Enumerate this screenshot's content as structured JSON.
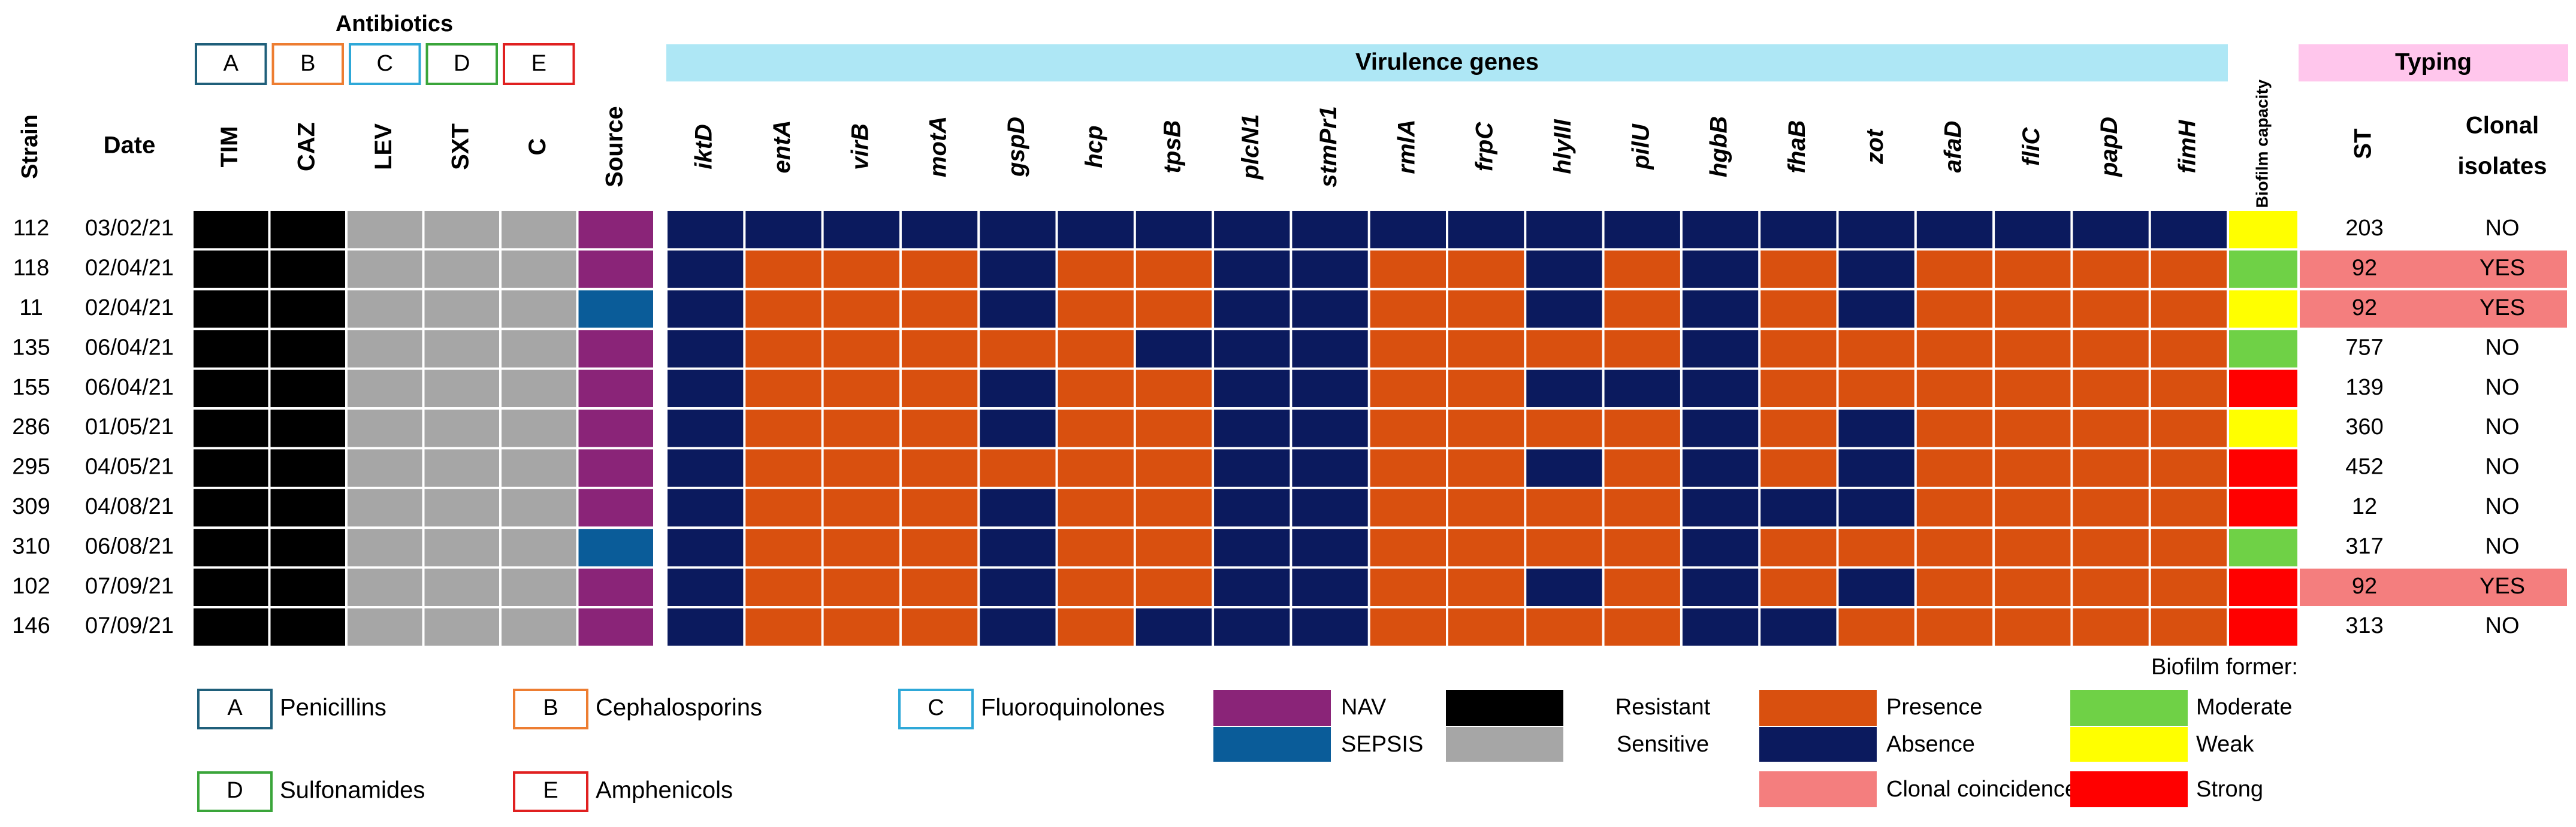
{
  "header": {
    "antibiotics_title": "Antibiotics",
    "class_letters": [
      "A",
      "B",
      "C",
      "D",
      "E"
    ],
    "virulence_title": "Virulence genes",
    "typing_title": "Typing"
  },
  "columns": {
    "strain": "Strain",
    "date": "Date",
    "antibiotics": [
      "TIM",
      "CAZ",
      "LEV",
      "SXT",
      "C"
    ],
    "source": "Source",
    "genes": [
      "iktD",
      "entA",
      "virB",
      "motA",
      "gspD",
      "hcp",
      "tpsB",
      "plcN1",
      "stmPr1",
      "rmlA",
      "frpC",
      "hlyIII",
      "pilU",
      "hgbB",
      "fhaB",
      "zot",
      "afaD",
      "fliC",
      "papD",
      "fimH"
    ],
    "biofilm": "Biofilm capacity",
    "st": "ST",
    "clonal_line1": "Clonal",
    "clonal_line2": "isolates"
  },
  "rows": [
    {
      "strain": "112",
      "date": "03/02/21",
      "abx": [
        "R",
        "R",
        "S",
        "S",
        "S"
      ],
      "source": "NAV",
      "genes": "AAAAAAAAAAAAAAAAAAAA",
      "biofilm": "Weak",
      "st": "203",
      "clonal": "NO"
    },
    {
      "strain": "118",
      "date": "02/04/21",
      "abx": [
        "R",
        "R",
        "S",
        "S",
        "S"
      ],
      "source": "NAV",
      "genes": "APPPAPPAAPPAPAPAPPPP",
      "biofilm": "Moderate",
      "st": "92",
      "clonal": "YES"
    },
    {
      "strain": "11",
      "date": "02/04/21",
      "abx": [
        "R",
        "R",
        "S",
        "S",
        "S"
      ],
      "source": "SEPSIS",
      "genes": "APPPAPPAAPPAPAPAPPPP",
      "biofilm": "Weak",
      "st": "92",
      "clonal": "YES"
    },
    {
      "strain": "135",
      "date": "06/04/21",
      "abx": [
        "R",
        "R",
        "S",
        "S",
        "S"
      ],
      "source": "NAV",
      "genes": "APPPPPAAAPPPPAPPPPPP",
      "biofilm": "Moderate",
      "st": "757",
      "clonal": "NO"
    },
    {
      "strain": "155",
      "date": "06/04/21",
      "abx": [
        "R",
        "R",
        "S",
        "S",
        "S"
      ],
      "source": "NAV",
      "genes": "APPPAPPAAPPAAAPPPPPP",
      "biofilm": "Strong",
      "st": "139",
      "clonal": "NO"
    },
    {
      "strain": "286",
      "date": "01/05/21",
      "abx": [
        "R",
        "R",
        "S",
        "S",
        "S"
      ],
      "source": "NAV",
      "genes": "APPPAPPAAPPPPAPAPPPP",
      "biofilm": "Weak",
      "st": "360",
      "clonal": "NO"
    },
    {
      "strain": "295",
      "date": "04/05/21",
      "abx": [
        "R",
        "R",
        "S",
        "S",
        "S"
      ],
      "source": "NAV",
      "genes": "APPPPPPAAPPAPAPAPPPP",
      "biofilm": "Strong",
      "st": "452",
      "clonal": "NO"
    },
    {
      "strain": "309",
      "date": "04/08/21",
      "abx": [
        "R",
        "R",
        "S",
        "S",
        "S"
      ],
      "source": "NAV",
      "genes": "APPPAPPAAPPPPAAAPPPP",
      "biofilm": "Strong",
      "st": "12",
      "clonal": "NO"
    },
    {
      "strain": "310",
      "date": "06/08/21",
      "abx": [
        "R",
        "R",
        "S",
        "S",
        "S"
      ],
      "source": "SEPSIS",
      "genes": "APPPAPPAAPPPPAPPPPPP",
      "biofilm": "Moderate",
      "st": "317",
      "clonal": "NO"
    },
    {
      "strain": "102",
      "date": "07/09/21",
      "abx": [
        "R",
        "R",
        "S",
        "S",
        "S"
      ],
      "source": "NAV",
      "genes": "APPPAPPAAPPAPAPAPPPP",
      "biofilm": "Strong",
      "st": "92",
      "clonal": "YES"
    },
    {
      "strain": "146",
      "date": "07/09/21",
      "abx": [
        "R",
        "R",
        "S",
        "S",
        "S"
      ],
      "source": "NAV",
      "genes": "APPPAPAAAPPPPAAPPPPP",
      "biofilm": "Strong",
      "st": "313",
      "clonal": "NO"
    }
  ],
  "legend": {
    "classes": [
      {
        "letter": "A",
        "label": "Penicillins"
      },
      {
        "letter": "B",
        "label": "Cephalosporins"
      },
      {
        "letter": "C",
        "label": "Fluoroquinolones"
      },
      {
        "letter": "D",
        "label": "Sulfonamides"
      },
      {
        "letter": "E",
        "label": "Amphenicols"
      }
    ],
    "nav": "NAV",
    "sepsis": "SEPSIS",
    "resistant": "Resistant",
    "sensitive": "Sensitive",
    "presence": "Presence",
    "absence": "Absence",
    "clonal_coincidence": "Clonal coincidence",
    "biofilm_title": "Biofilm former:",
    "moderate": "Moderate",
    "weak": "Weak",
    "strong": "Strong"
  },
  "colors": {
    "resistant": "#000000",
    "sensitive": "#a6a6a6",
    "NAV": "#8a2478",
    "SEPSIS": "#0a5c99",
    "presence": "#d9500f",
    "absence": "#0b1a5e",
    "moderate": "#6fd146",
    "weak": "#ffff00",
    "strong": "#ff0000",
    "clonal": "#f47e7e",
    "virulence_header": "#aee7f5",
    "typing_header": "#ffc6ec",
    "class_A": "#1f5f7a",
    "class_B": "#ed7d31",
    "class_C": "#2ea8d8",
    "class_D": "#3aa53a",
    "class_E": "#e02020"
  }
}
